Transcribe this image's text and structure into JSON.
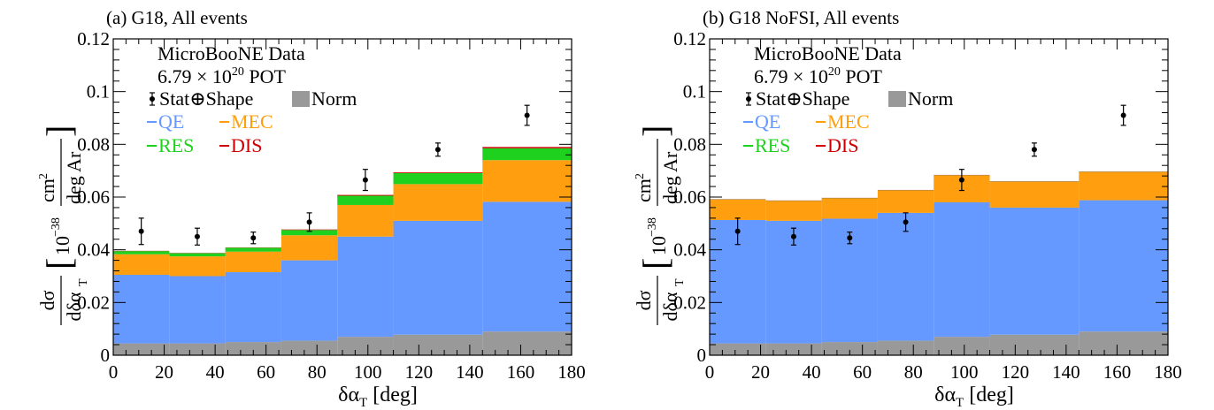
{
  "chart_data": [
    {
      "type": "bar",
      "panel_title": "(a) G18, All events",
      "xlabel": "δα_T [deg]",
      "ylabel": "dσ/dδα_T [10^-38 cm^2 / deg Ar]",
      "xlim": [
        0,
        180
      ],
      "ylim": [
        0,
        0.12
      ],
      "x_ticks": [
        0,
        20,
        40,
        60,
        80,
        100,
        120,
        140,
        160,
        180
      ],
      "y_ticks": [
        0,
        0.02,
        0.04,
        0.06,
        0.08,
        0.1,
        0.12
      ],
      "y_tick_labels": [
        "0",
        "0.02",
        "0.04",
        "0.06",
        "0.08",
        "0.1",
        "0.12"
      ],
      "bin_edges": [
        0,
        22,
        44,
        66,
        88,
        110,
        145,
        180
      ],
      "stacks": [
        {
          "name": "Norm",
          "color": "#999999",
          "values": [
            0.0045,
            0.0045,
            0.005,
            0.0055,
            0.007,
            0.0078,
            0.009
          ]
        },
        {
          "name": "QE",
          "color": "#6699ff",
          "values": [
            0.026,
            0.0255,
            0.0265,
            0.0305,
            0.038,
            0.0432,
            0.0492
          ]
        },
        {
          "name": "MEC",
          "color": "#ff9f0f",
          "values": [
            0.0078,
            0.0075,
            0.0078,
            0.0095,
            0.012,
            0.0139,
            0.0158
          ]
        },
        {
          "name": "RES",
          "color": "#1fd11f",
          "values": [
            0.0012,
            0.0012,
            0.0015,
            0.002,
            0.0035,
            0.0042,
            0.0045
          ]
        },
        {
          "name": "DIS",
          "color": "#cc0000",
          "values": [
            0.0001,
            0.0001,
            0.0001,
            0.0002,
            0.0003,
            0.0003,
            0.0005
          ]
        }
      ],
      "data_points": [
        {
          "x": 11,
          "y": 0.047,
          "err": 0.005
        },
        {
          "x": 33,
          "y": 0.045,
          "err": 0.0032
        },
        {
          "x": 55,
          "y": 0.0445,
          "err": 0.0022
        },
        {
          "x": 77,
          "y": 0.0505,
          "err": 0.0035
        },
        {
          "x": 99,
          "y": 0.0665,
          "err": 0.004
        },
        {
          "x": 127.5,
          "y": 0.078,
          "err": 0.0025
        },
        {
          "x": 162.5,
          "y": 0.091,
          "err": 0.0038
        }
      ],
      "annotations": [
        "MicroBooNE Data",
        "6.79 × 10",
        "20",
        " POT"
      ],
      "legend": [
        {
          "label": "Stat⊕Shape",
          "kind": "data"
        },
        {
          "label": "Norm",
          "kind": "box",
          "color": "#999999"
        },
        {
          "label": "QE",
          "kind": "line",
          "color": "#6699ff"
        },
        {
          "label": "MEC",
          "kind": "line",
          "color": "#ff9f0f"
        },
        {
          "label": "RES",
          "kind": "line",
          "color": "#1fd11f"
        },
        {
          "label": "DIS",
          "kind": "line",
          "color": "#cc0000"
        }
      ],
      "legend_placement": "top-left",
      "grid": false
    },
    {
      "type": "bar",
      "panel_title": "(b) G18 NoFSI, All events",
      "xlabel": "δα_T [deg]",
      "ylabel": "dσ/dδα_T [10^-38 cm^2 / deg Ar]",
      "xlim": [
        0,
        180
      ],
      "ylim": [
        0,
        0.12
      ],
      "x_ticks": [
        0,
        20,
        40,
        60,
        80,
        100,
        120,
        140,
        160,
        180
      ],
      "y_ticks": [
        0,
        0.02,
        0.04,
        0.06,
        0.08,
        0.1,
        0.12
      ],
      "y_tick_labels": [
        "0",
        "0.02",
        "0.04",
        "0.06",
        "0.08",
        "0.1",
        "0.12"
      ],
      "bin_edges": [
        0,
        22,
        44,
        66,
        88,
        110,
        145,
        180
      ],
      "stacks": [
        {
          "name": "Norm",
          "color": "#999999",
          "values": [
            0.0045,
            0.0045,
            0.005,
            0.0055,
            0.007,
            0.0078,
            0.009
          ]
        },
        {
          "name": "QE",
          "color": "#6699ff",
          "values": [
            0.0468,
            0.0465,
            0.0468,
            0.0485,
            0.051,
            0.0482,
            0.0498
          ]
        },
        {
          "name": "MEC",
          "color": "#ff9f0f",
          "values": [
            0.0077,
            0.0075,
            0.0077,
            0.0085,
            0.0102,
            0.0098,
            0.0107
          ]
        },
        {
          "name": "RES",
          "color": "#1fd11f",
          "values": [
            0.0001,
            0.0001,
            0.0001,
            0.0001,
            0.0001,
            0.0001,
            0.0001
          ]
        },
        {
          "name": "DIS",
          "color": "#cc0000",
          "values": [
            0.0001,
            0.0001,
            0.0001,
            0.0001,
            0.0001,
            0.0001,
            0.0001
          ]
        }
      ],
      "data_points": [
        {
          "x": 11,
          "y": 0.047,
          "err": 0.005
        },
        {
          "x": 33,
          "y": 0.045,
          "err": 0.0032
        },
        {
          "x": 55,
          "y": 0.0445,
          "err": 0.0022
        },
        {
          "x": 77,
          "y": 0.0505,
          "err": 0.0035
        },
        {
          "x": 99,
          "y": 0.0665,
          "err": 0.004
        },
        {
          "x": 127.5,
          "y": 0.078,
          "err": 0.0025
        },
        {
          "x": 162.5,
          "y": 0.091,
          "err": 0.0038
        }
      ],
      "annotations": [
        "MicroBooNE Data",
        "6.79 × 10",
        "20",
        " POT"
      ],
      "legend": [
        {
          "label": "Stat⊕Shape",
          "kind": "data"
        },
        {
          "label": "Norm",
          "kind": "box",
          "color": "#999999"
        },
        {
          "label": "QE",
          "kind": "line",
          "color": "#6699ff"
        },
        {
          "label": "MEC",
          "kind": "line",
          "color": "#ff9f0f"
        },
        {
          "label": "RES",
          "kind": "line",
          "color": "#1fd11f"
        },
        {
          "label": "DIS",
          "kind": "line",
          "color": "#cc0000"
        }
      ],
      "legend_placement": "top-left",
      "grid": false
    }
  ]
}
